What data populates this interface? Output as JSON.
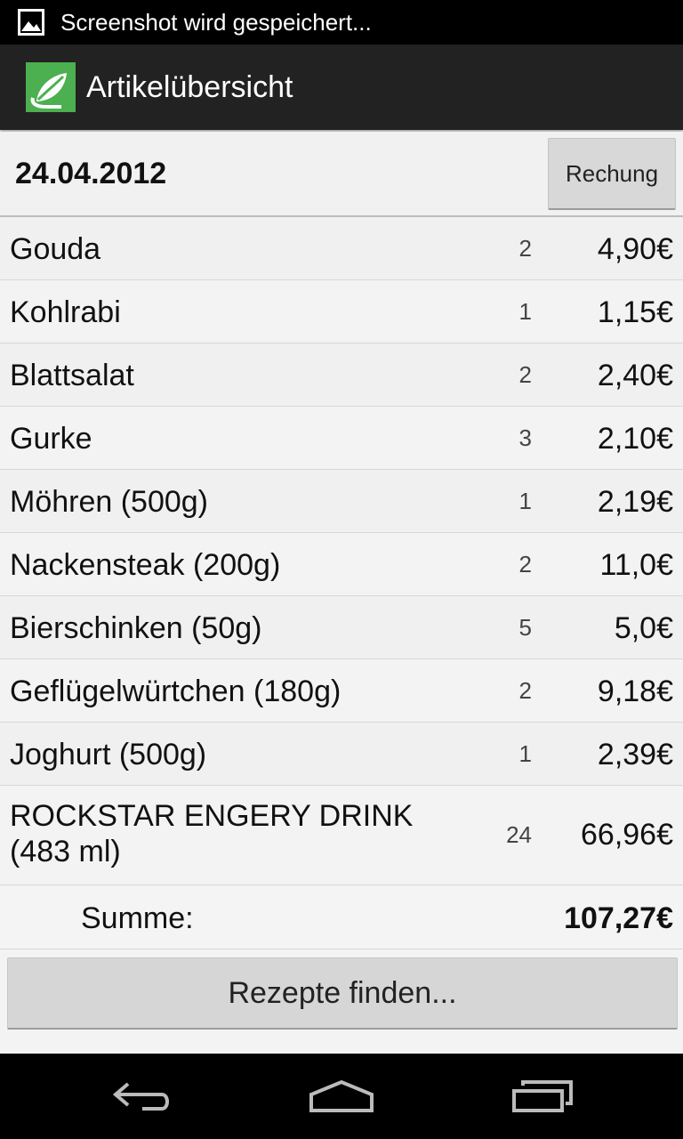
{
  "status_bar": {
    "notification_text": "Screenshot wird gespeichert..."
  },
  "action_bar": {
    "title": "Artikelübersicht"
  },
  "header": {
    "date": "24.04.2012",
    "invoice_button_label": "Rechung"
  },
  "items": [
    {
      "name": "Gouda",
      "quantity": "2",
      "price": "4,90€"
    },
    {
      "name": "Kohlrabi",
      "quantity": "1",
      "price": "1,15€"
    },
    {
      "name": "Blattsalat",
      "quantity": "2",
      "price": "2,40€"
    },
    {
      "name": "Gurke",
      "quantity": "3",
      "price": "2,10€"
    },
    {
      "name": "Möhren (500g)",
      "quantity": "1",
      "price": "2,19€"
    },
    {
      "name": "Nackensteak (200g)",
      "quantity": "2",
      "price": "11,0€"
    },
    {
      "name": "Bierschinken (50g)",
      "quantity": "5",
      "price": "5,0€"
    },
    {
      "name": "Geflügelwürtchen (180g)",
      "quantity": "2",
      "price": "9,18€"
    },
    {
      "name": "Joghurt (500g)",
      "quantity": "1",
      "price": "2,39€"
    },
    {
      "name": "ROCKSTAR ENGERY DRINK (483 ml)",
      "quantity": "24",
      "price": "66,96€"
    }
  ],
  "summary": {
    "label": "Summe:",
    "total": "107,27€"
  },
  "recipe_button_label": "Rezepte finden...",
  "icons": {
    "status": "image-icon",
    "app": "leaf-logo-icon",
    "nav": [
      "back-icon",
      "home-icon",
      "recent-apps-icon"
    ]
  },
  "colors": {
    "logo_green": "#4caf50",
    "action_bar": "#222222",
    "button_grey": "#d8d8d8"
  }
}
